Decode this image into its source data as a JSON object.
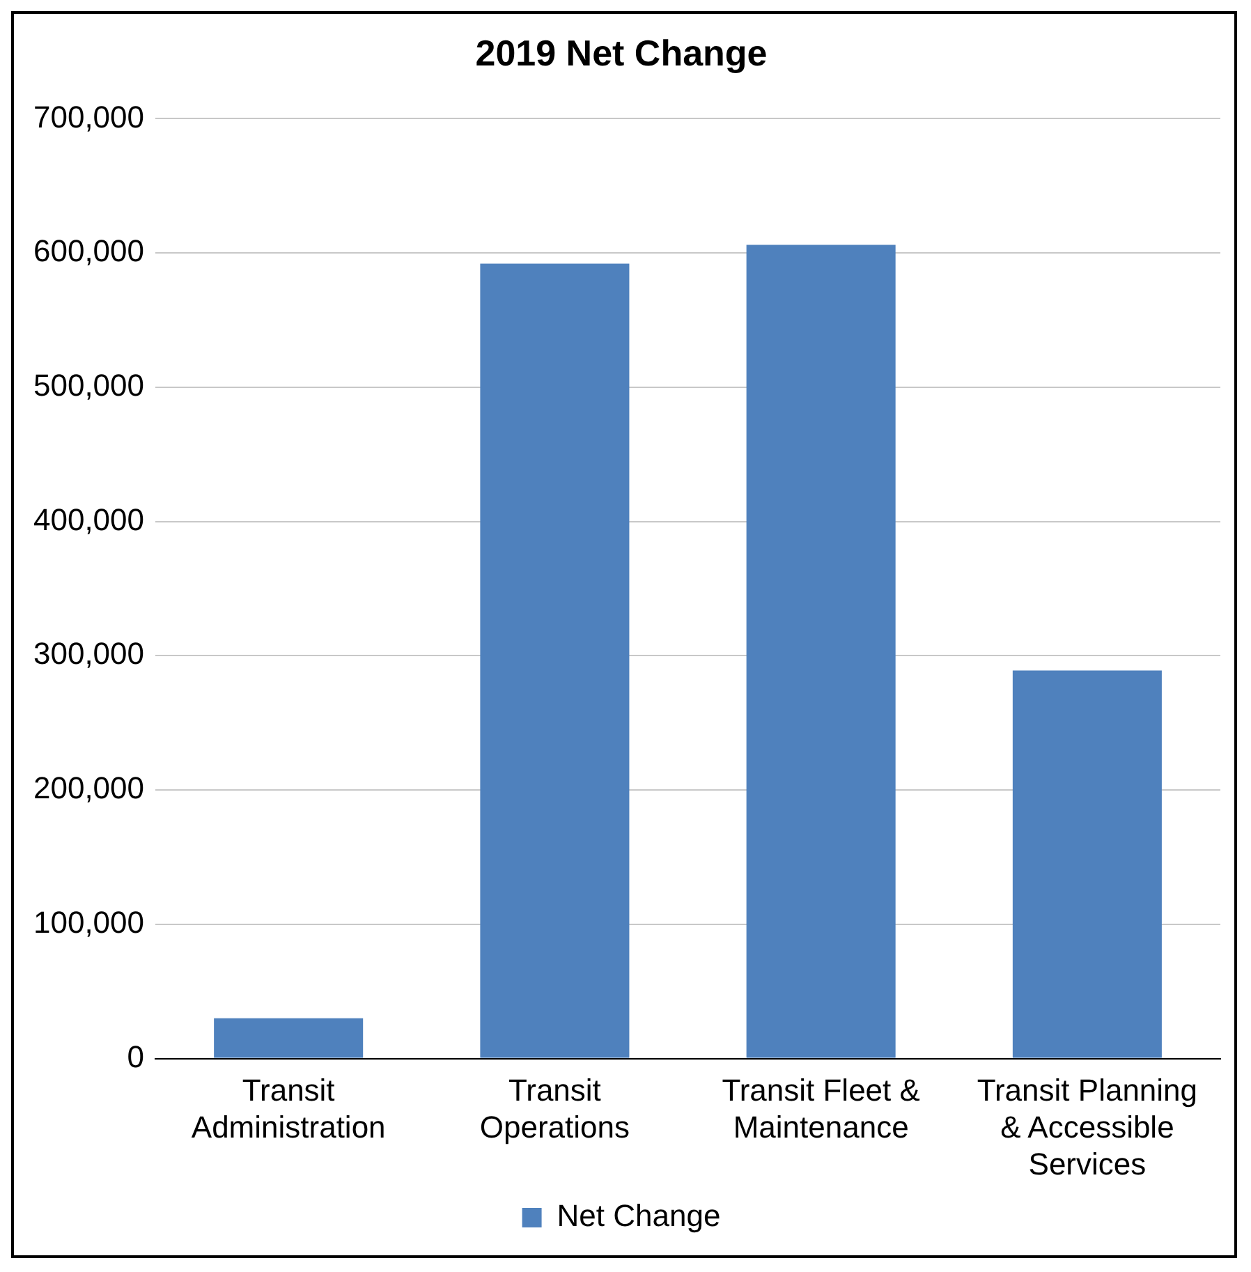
{
  "chart_data": {
    "type": "bar",
    "title": "2019 Net Change",
    "categories": [
      "Transit Administration",
      "Transit Operations",
      "Transit Fleet & Maintenance",
      "Transit Planning & Accessible Services"
    ],
    "series": [
      {
        "name": "Net Change",
        "color": "#4f81bd",
        "values": [
          30000,
          592000,
          606000,
          289000
        ]
      }
    ],
    "ylim": [
      0,
      700000
    ],
    "yticks": [
      0,
      {
        "value": 100000,
        "label": "100,000"
      },
      {
        "value": 200000,
        "label": "200,000"
      },
      {
        "value": 300000,
        "label": "300,000"
      },
      {
        "value": 400000,
        "label": "400,000"
      },
      {
        "value": 500000,
        "label": "500,000"
      },
      {
        "value": 600000,
        "label": "600,000"
      },
      {
        "value": 700000,
        "label": "700,000"
      }
    ],
    "grid": "y",
    "legend": "bottom"
  }
}
